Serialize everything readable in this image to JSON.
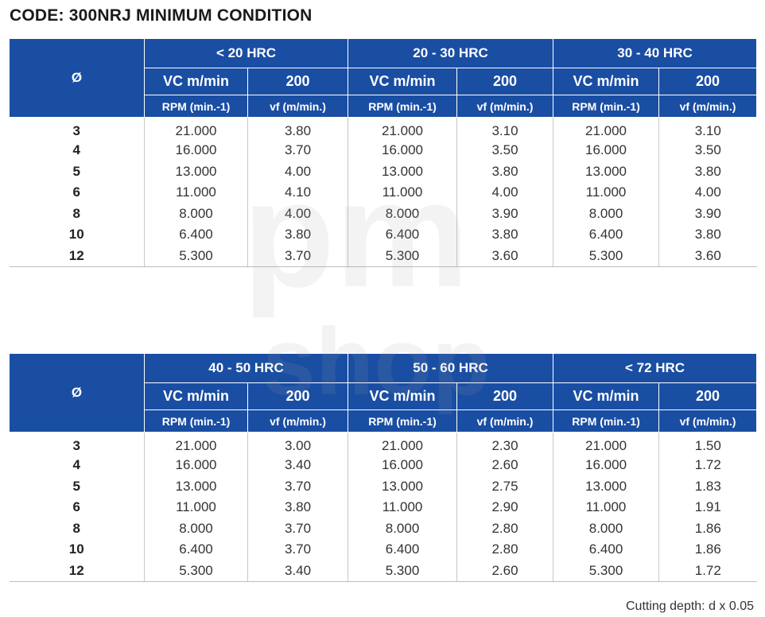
{
  "title": "CODE: 300NRJ MINIMUM CONDITION",
  "header": {
    "diameter_symbol": "Ø",
    "vc_label": "VC m/min",
    "vc_value": "200",
    "rpm_label": "RPM (min.-1)",
    "vf_label": "vf (m/min.)"
  },
  "tables": [
    {
      "groups": [
        "< 20 HRC",
        "20 - 30 HRC",
        "30 - 40 HRC"
      ],
      "rows": [
        [
          "3",
          "21.000",
          "3.80",
          "21.000",
          "3.10",
          "21.000",
          "3.10"
        ],
        [
          "4",
          "16.000",
          "3.70",
          "16.000",
          "3.50",
          "16.000",
          "3.50"
        ],
        [
          "5",
          "13.000",
          "4.00",
          "13.000",
          "3.80",
          "13.000",
          "3.80"
        ],
        [
          "6",
          "11.000",
          "4.10",
          "11.000",
          "4.00",
          "11.000",
          "4.00"
        ],
        [
          "8",
          "8.000",
          "4.00",
          "8.000",
          "3.90",
          "8.000",
          "3.90"
        ],
        [
          "10",
          "6.400",
          "3.80",
          "6.400",
          "3.80",
          "6.400",
          "3.80"
        ],
        [
          "12",
          "5.300",
          "3.70",
          "5.300",
          "3.60",
          "5.300",
          "3.60"
        ]
      ]
    },
    {
      "groups": [
        "40 - 50 HRC",
        "50 - 60 HRC",
        "< 72 HRC"
      ],
      "rows": [
        [
          "3",
          "21.000",
          "3.00",
          "21.000",
          "2.30",
          "21.000",
          "1.50"
        ],
        [
          "4",
          "16.000",
          "3.40",
          "16.000",
          "2.60",
          "16.000",
          "1.72"
        ],
        [
          "5",
          "13.000",
          "3.70",
          "13.000",
          "2.75",
          "13.000",
          "1.83"
        ],
        [
          "6",
          "11.000",
          "3.80",
          "11.000",
          "2.90",
          "11.000",
          "1.91"
        ],
        [
          "8",
          "8.000",
          "3.70",
          "8.000",
          "2.80",
          "8.000",
          "1.86"
        ],
        [
          "10",
          "6.400",
          "3.70",
          "6.400",
          "2.80",
          "6.400",
          "1.86"
        ],
        [
          "12",
          "5.300",
          "3.40",
          "5.300",
          "2.60",
          "5.300",
          "1.72"
        ]
      ]
    }
  ],
  "footer": "Cutting depth: d x 0.05",
  "watermark": [
    "pm",
    "shop"
  ],
  "colors": {
    "header_bg": "#1a4ea3",
    "header_text": "#ffffff"
  }
}
